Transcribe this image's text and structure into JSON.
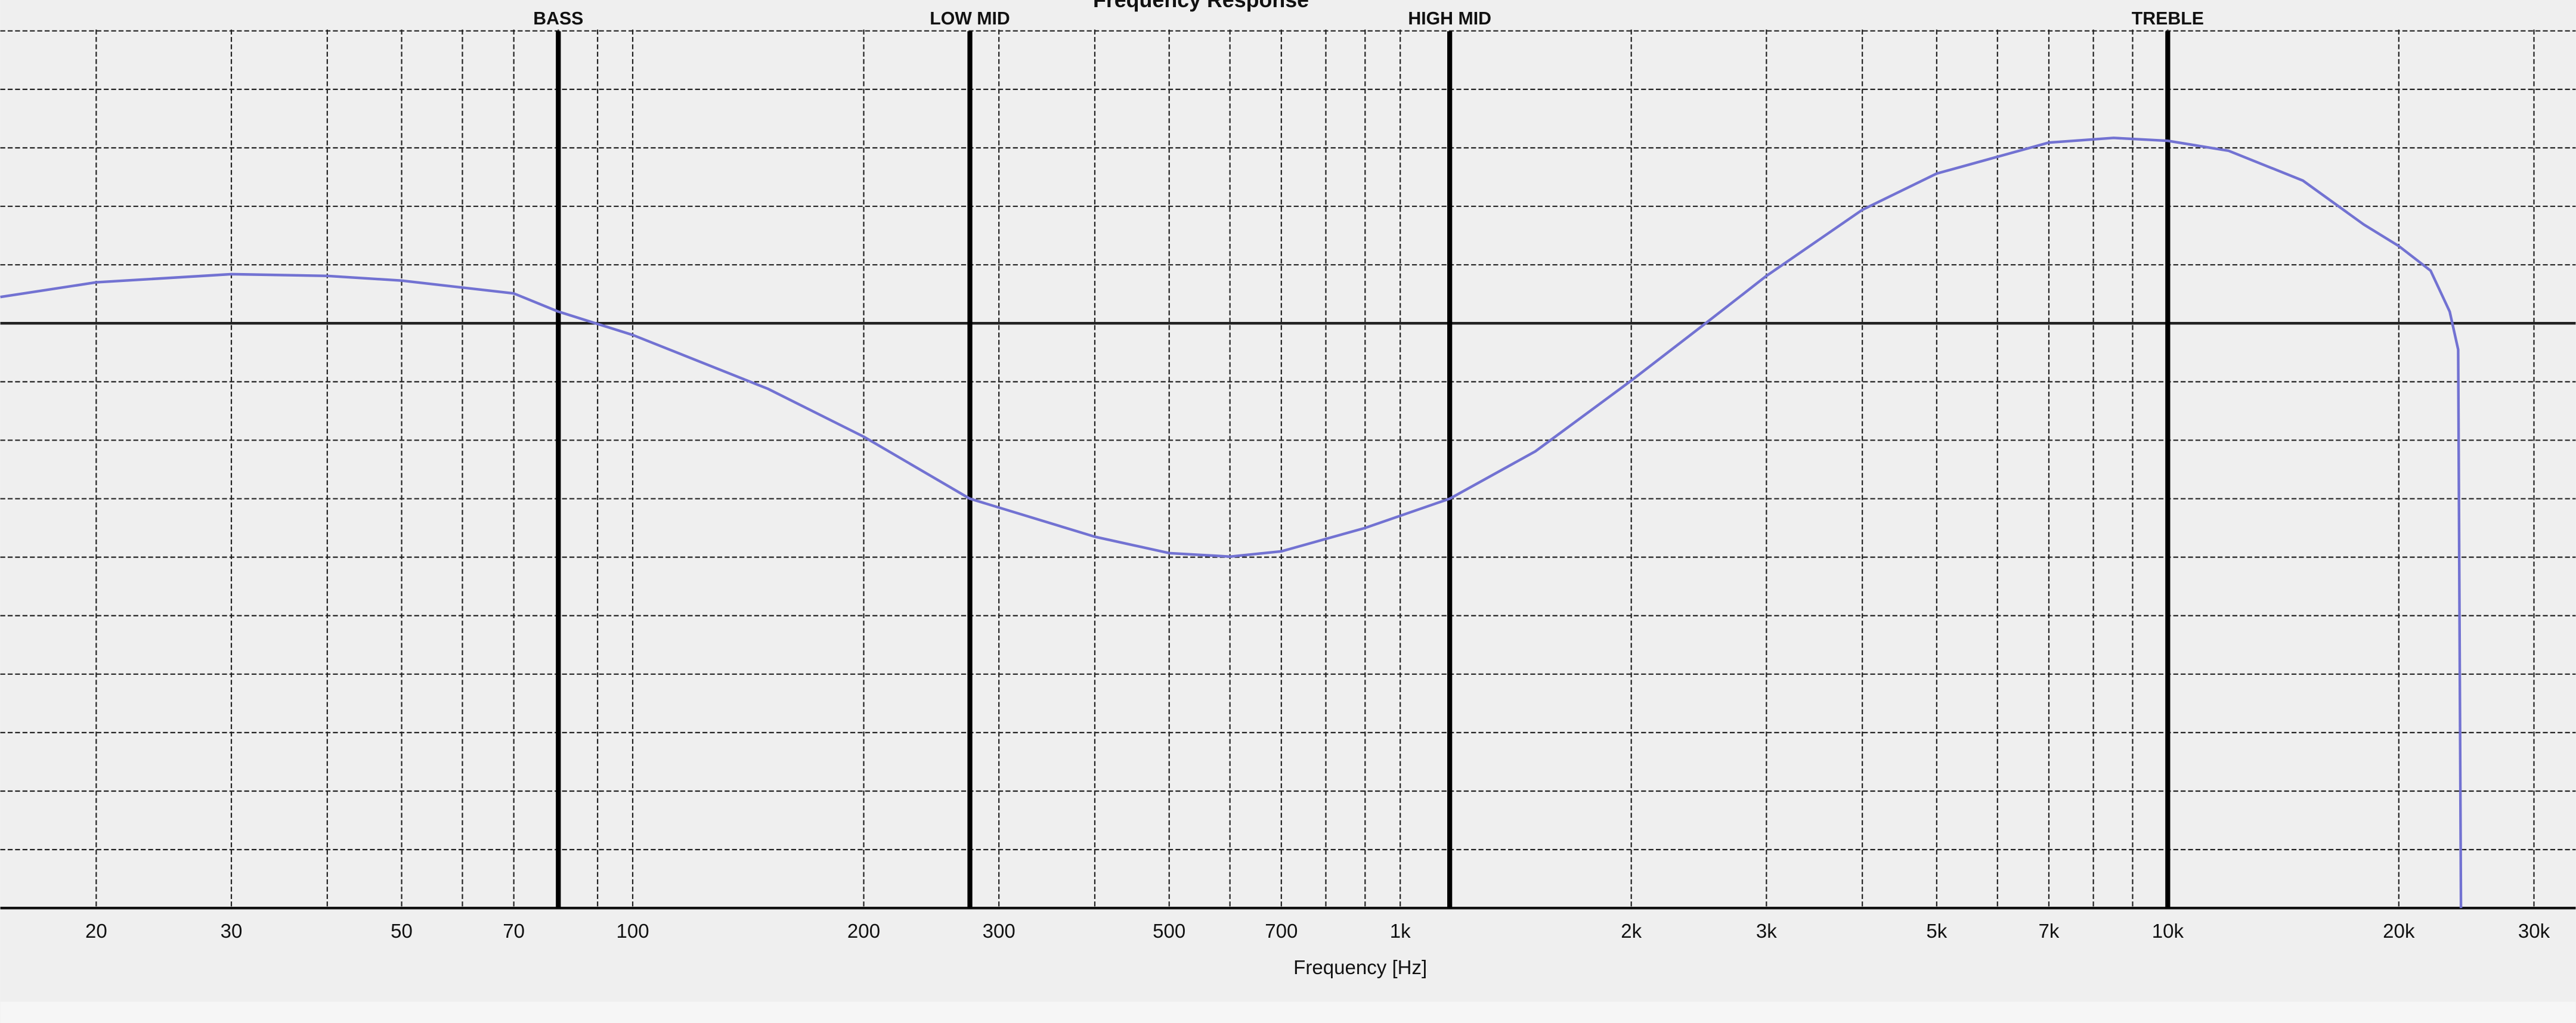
{
  "chart_data": {
    "type": "line",
    "title": "Frequency Response",
    "x_label": "Frequency [Hz]",
    "log_x": true,
    "grid": true,
    "color": "#7272d2",
    "x": [
      15,
      20,
      30,
      40,
      50,
      70,
      80,
      100,
      150,
      200,
      275,
      400,
      500,
      600,
      700,
      900,
      1160,
      1500,
      2000,
      2500,
      3000,
      4000,
      5000,
      7000,
      8500,
      10000,
      12000,
      15000,
      18000,
      20000,
      22000,
      23300,
      23900,
      24100
    ],
    "values": [
      0.45,
      0.7,
      0.84,
      0.81,
      0.73,
      0.51,
      0.2,
      -0.2,
      -1.12,
      -1.94,
      -3.0,
      -3.65,
      -3.93,
      -3.99,
      -3.9,
      -3.5,
      -3.0,
      -2.19,
      -0.98,
      0,
      0.81,
      1.94,
      2.56,
      3.09,
      3.17,
      3.12,
      2.95,
      2.44,
      1.69,
      1.32,
      0.9,
      0.2,
      -0.45,
      -10
    ],
    "xlim": [
      15,
      34000
    ],
    "ylim": [
      -10,
      5.5
    ],
    "xticks": [
      20,
      30,
      50,
      70,
      100,
      200,
      300,
      500,
      700,
      {
        "value": 1000,
        "label": "1k"
      },
      {
        "value": 2000,
        "label": "2k"
      },
      {
        "value": 3000,
        "label": "3k"
      },
      {
        "value": 5000,
        "label": "5k"
      },
      {
        "value": 7000,
        "label": "7k"
      },
      {
        "value": 10000,
        "label": "10k"
      },
      {
        "value": 20000,
        "label": "20k"
      },
      {
        "value": 30000,
        "label": "30k"
      }
    ],
    "xgrid": [
      20,
      30,
      40,
      50,
      60,
      70,
      80,
      90,
      100,
      200,
      300,
      400,
      500,
      600,
      700,
      800,
      900,
      1000,
      2000,
      3000,
      4000,
      5000,
      6000,
      7000,
      8000,
      9000,
      10000,
      20000,
      30000
    ],
    "yticks": [
      -10,
      -9,
      -8,
      -7,
      -6,
      -5,
      -4,
      -3,
      -2,
      -1,
      0,
      1,
      2,
      3,
      4,
      5
    ],
    "markers": [
      {
        "label": "BASS",
        "x": 80
      },
      {
        "label": "LOW MID",
        "x": 275
      },
      {
        "label": "HIGH MID",
        "x": 1160
      },
      {
        "label": "TREBLE",
        "x": 10000
      }
    ]
  }
}
